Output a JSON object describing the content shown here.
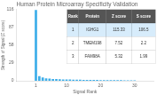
{
  "chart_data": {
    "type": "bar",
    "title": "Human Protein Microarray Specificity Validation",
    "xlabel": "Signal Rank",
    "ylabel": "Strength of Signal (Z score)",
    "x": [
      1,
      2,
      3,
      4,
      5,
      6,
      7,
      8,
      9,
      10,
      11,
      12,
      13,
      14,
      15,
      16,
      17,
      18,
      19,
      20,
      21,
      22,
      23,
      24,
      25,
      26,
      27,
      28,
      29,
      30
    ],
    "values": [
      115.33,
      7.52,
      5.32,
      4.1,
      3.5,
      3.0,
      2.8,
      2.5,
      2.3,
      2.1,
      2.0,
      1.9,
      1.8,
      1.7,
      1.6,
      1.5,
      1.4,
      1.35,
      1.3,
      1.25,
      1.2,
      1.15,
      1.1,
      1.05,
      1.0,
      0.95,
      0.9,
      0.85,
      0.8,
      0.75
    ],
    "color": "#3daee9",
    "xlim": [
      0.3,
      30.5
    ],
    "xticks": [
      1,
      10,
      20,
      30
    ],
    "ylim": [
      0,
      116
    ],
    "yticks": [
      0,
      29,
      58,
      87,
      116
    ],
    "grid": false,
    "table": {
      "columns": [
        "Rank",
        "Protein",
        "Z score",
        "S score"
      ],
      "rows": [
        [
          "1",
          "IGHG1",
          "115.33",
          "106.5"
        ],
        [
          "2",
          "TMEM198",
          "7.52",
          "2.2"
        ],
        [
          "3",
          "FAM98A",
          "5.32",
          "1.99"
        ]
      ]
    }
  }
}
